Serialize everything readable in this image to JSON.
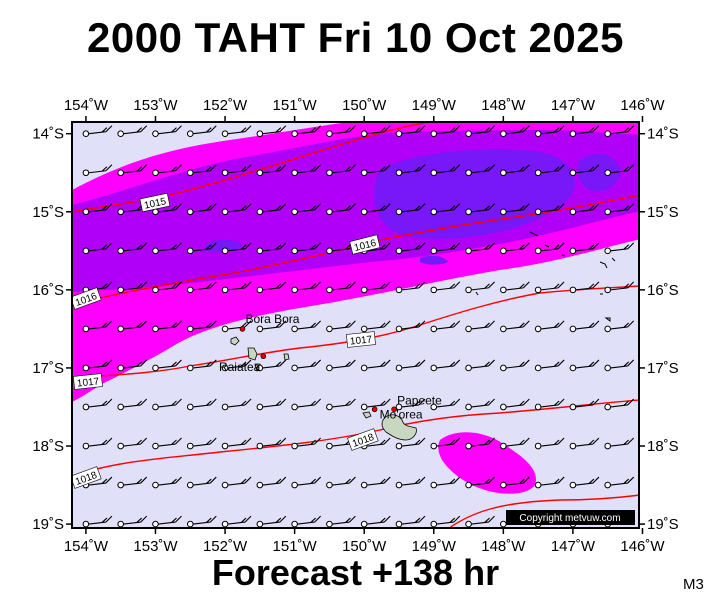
{
  "title": "2000 TAHT Fri 10 Oct 2025",
  "forecast_label": "Forecast +138 hr",
  "model_code": "M3",
  "copyright": "Copyright metvuw.com",
  "map": {
    "lon_range": [
      -154.2,
      -146.05
    ],
    "lat_range": [
      -19.05,
      -13.85
    ],
    "lon_ticks": [
      {
        "value": -154,
        "label": "154˚W"
      },
      {
        "value": -153,
        "label": "153˚W"
      },
      {
        "value": -152,
        "label": "152˚W"
      },
      {
        "value": -151,
        "label": "151˚W"
      },
      {
        "value": -150,
        "label": "150˚W"
      },
      {
        "value": -149,
        "label": "149˚W"
      },
      {
        "value": -148,
        "label": "148˚W"
      },
      {
        "value": -147,
        "label": "147˚W"
      },
      {
        "value": -146,
        "label": "146˚W"
      }
    ],
    "lat_ticks": [
      {
        "value": -14,
        "label": "14˚S"
      },
      {
        "value": -15,
        "label": "15˚S"
      },
      {
        "value": -16,
        "label": "16˚S"
      },
      {
        "value": -17,
        "label": "17˚S"
      },
      {
        "value": -18,
        "label": "18˚S"
      },
      {
        "value": -19,
        "label": "19˚S"
      }
    ],
    "places": [
      {
        "name": "Bora Bora",
        "lon": -151.75,
        "lat": -16.5
      },
      {
        "name": "Raiatea",
        "lon": -151.45,
        "lat": -16.85
      },
      {
        "name": "Mo'orea",
        "lon": -149.85,
        "lat": -17.53
      },
      {
        "name": "Papeete",
        "lon": -149.57,
        "lat": -17.53
      }
    ],
    "isobars": [
      {
        "label": "1015",
        "pressure_hpa": 1015
      },
      {
        "label": "1016",
        "pressure_hpa": 1016
      },
      {
        "label": "1016",
        "pressure_hpa": 1016
      },
      {
        "label": "1017",
        "pressure_hpa": 1017
      },
      {
        "label": "1017",
        "pressure_hpa": 1017
      },
      {
        "label": "1018",
        "pressure_hpa": 1018
      },
      {
        "label": "1018",
        "pressure_hpa": 1018
      }
    ],
    "colors": {
      "sea_background": "#e0e0f8",
      "rain_light": "#ff00ff",
      "rain_moderate": "#b000f8",
      "rain_heavy": "#7818f8",
      "isobar": "#ff0000",
      "land": "#c8d8c0"
    },
    "wind_barb": "east-southeast wind barbs at every grid point"
  }
}
